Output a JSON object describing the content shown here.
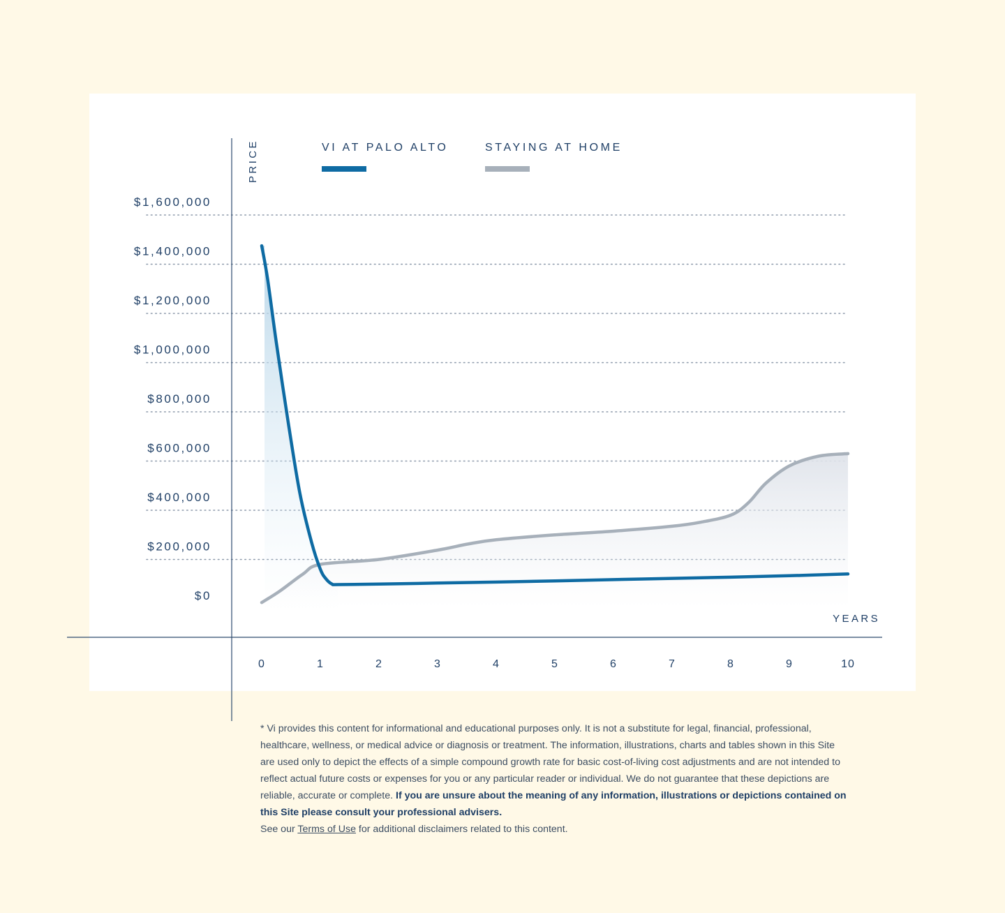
{
  "chart_data": {
    "type": "line",
    "ylabel": "PRICE",
    "xlabel": "YEARS",
    "y_ticks": [
      "$1,600,000",
      "$1,400,000",
      "$1,200,000",
      "$1,000,000",
      "$800,000",
      "$600,000",
      "$400,000",
      "$200,000",
      "$0"
    ],
    "y_tick_values": [
      1600000,
      1400000,
      1200000,
      1000000,
      800000,
      600000,
      400000,
      200000,
      0
    ],
    "x_ticks": [
      "0",
      "1",
      "2",
      "3",
      "4",
      "5",
      "6",
      "7",
      "8",
      "9",
      "10"
    ],
    "xlim": [
      0,
      10
    ],
    "ylim": [
      0,
      1600000
    ],
    "grid": true,
    "legend_placement": "top",
    "series": [
      {
        "name": "VI AT PALO ALTO",
        "color": "#0e6ba3",
        "x": [
          0,
          0.1,
          0.25,
          0.45,
          0.65,
          0.85,
          1.0,
          1.1,
          1.2,
          1.3,
          2,
          3,
          4,
          5,
          6,
          7,
          8,
          9,
          10
        ],
        "y": [
          1475000,
          1340000,
          1080000,
          760000,
          470000,
          270000,
          160000,
          120000,
          100000,
          98000,
          100000,
          104000,
          108000,
          113000,
          118000,
          123000,
          128000,
          134000,
          141000
        ]
      },
      {
        "name": "STAYING AT HOME",
        "color": "#a7b0ba",
        "x": [
          0,
          0.3,
          0.7,
          1.0,
          2,
          3,
          3.5,
          4,
          5,
          6,
          7,
          7.5,
          8,
          8.3,
          8.6,
          9,
          9.5,
          10
        ],
        "y": [
          25000,
          70000,
          140000,
          180000,
          200000,
          238000,
          262000,
          280000,
          300000,
          315000,
          335000,
          352000,
          380000,
          430000,
          510000,
          580000,
          620000,
          630000
        ]
      }
    ]
  },
  "disclaimer": {
    "text_1": "* Vi provides this content for informational and educational purposes only. It is not a substitute for legal, financial, professional, healthcare, wellness, or medical advice or diagnosis or treatment. The information, illustrations, charts and tables shown in this Site are used only to depict the effects of a simple compound growth rate for basic cost-of-living cost adjustments and are not intended to reflect actual future costs or expenses for you or any particular reader or individual. We do not guarantee that these depictions are reliable, accurate or complete. ",
    "bold": "If you are unsure about the meaning of any information, illustrations or depictions contained on this Site please consult your professional advisers.",
    "see_our": "See our ",
    "terms_link": "Terms of Use",
    "after_link": " for additional disclaimers related to this content."
  }
}
